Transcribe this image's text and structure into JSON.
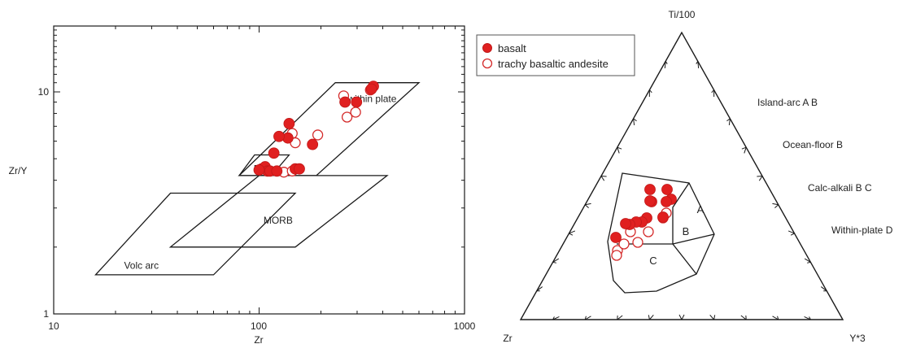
{
  "chart_data": [
    {
      "type": "scatter",
      "xlabel": "Zr",
      "ylabel": "Zr/Y",
      "xscale": "log",
      "yscale": "log",
      "xlim": [
        10,
        1000
      ],
      "ylim": [
        1,
        20
      ],
      "x_ticks": [
        "10",
        "100",
        "1000"
      ],
      "y_ticks": [
        "1",
        "10"
      ],
      "fields": [
        {
          "label": "Volc arc",
          "polygon": [
            [
              16,
              1.5
            ],
            [
              60,
              1.5
            ],
            [
              150,
              3.5
            ],
            [
              37,
              3.5
            ]
          ],
          "label_at": [
            22,
            1.6
          ]
        },
        {
          "label": "MORB",
          "polygon": [
            [
              37,
              2.0
            ],
            [
              150,
              2.0
            ],
            [
              420,
              4.2
            ],
            [
              100,
              4.2
            ]
          ],
          "label_at": [
            105,
            2.55
          ]
        },
        {
          "label": "within plate",
          "polygon": [
            [
              80,
              4.2
            ],
            [
              190,
              4.2
            ],
            [
              600,
              11.0
            ],
            [
              235,
              11.0
            ]
          ],
          "label_at": [
            270,
            9.0
          ]
        },
        {
          "label": "",
          "polygon": [
            [
              80,
              4.2
            ],
            [
              115,
              4.2
            ],
            [
              140,
              5.2
            ],
            [
              95,
              5.2
            ]
          ],
          "label_at": null
        }
      ],
      "field_labels_extra": [
        {
          "label": "B",
          "label_at": [
            94,
            4.35
          ]
        }
      ],
      "series": [
        {
          "name": "basalt",
          "marker": "filled-circle",
          "points": [
            [
              360,
              10.6
            ],
            [
              352,
              10.3
            ],
            [
              262,
              9.0
            ],
            [
              298,
              9.0
            ],
            [
              118,
              5.3
            ],
            [
              140,
              7.2
            ],
            [
              138,
              6.2
            ],
            [
              125,
              6.3
            ],
            [
              182,
              5.8
            ],
            [
              103,
              4.5
            ],
            [
              107,
              4.6
            ],
            [
              110,
              4.4
            ],
            [
              113,
              4.4
            ],
            [
              100,
              4.45
            ],
            [
              122,
              4.4
            ],
            [
              150,
              4.5
            ],
            [
              157,
              4.5
            ]
          ]
        },
        {
          "name": "trachy basaltic andesite",
          "marker": "open-circle",
          "points": [
            [
              258,
              9.6
            ],
            [
              348,
              10.2
            ],
            [
              295,
              8.1
            ],
            [
              268,
              7.7
            ],
            [
              193,
              6.4
            ],
            [
              145,
              6.5
            ],
            [
              150,
              5.9
            ],
            [
              132,
              4.35
            ],
            [
              145,
              4.4
            ]
          ]
        }
      ]
    },
    {
      "type": "ternary",
      "apex_labels": {
        "top": "Ti/100",
        "left": "Zr",
        "right": "Y*3"
      },
      "legend_position": "top-left",
      "field_labels": [
        "A",
        "B",
        "C"
      ],
      "side_labels": [
        "Island-arc A B",
        "Ocean-floor B",
        "Calc-alkali B C",
        "Within-plate D"
      ],
      "series": [
        {
          "name": "basalt",
          "marker": "filled-circle"
        },
        {
          "name": "trachy basaltic andesite",
          "marker": "open-circle"
        }
      ]
    }
  ],
  "colors": {
    "basalt": "#e02020",
    "trachy": "#d42a2a",
    "line": "#1a1a1a"
  }
}
